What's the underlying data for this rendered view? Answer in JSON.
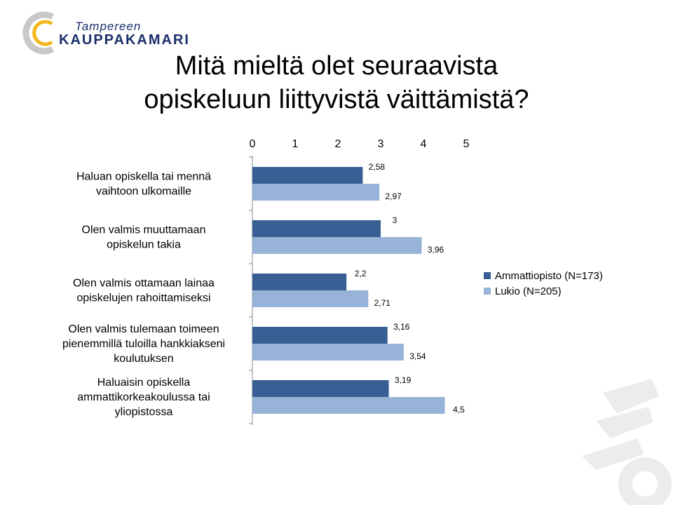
{
  "logo": {
    "line1": "Tampereen",
    "line2": "KAUPPAKAMARI"
  },
  "title": {
    "line1": "Mitä mieltä olet seuraavista",
    "line2": "opiskeluun liittyvistä väittämistä?"
  },
  "colors": {
    "series1": "#375f93",
    "series2": "#98b3d8",
    "axis": "#888888",
    "logo_accent": "#f2b81d",
    "logo_ring": "#c8c8c8"
  },
  "chart_data": {
    "type": "bar",
    "orientation": "horizontal",
    "xlim": [
      0,
      5
    ],
    "x_ticks": [
      "0",
      "1",
      "2",
      "3",
      "4",
      "5"
    ],
    "x_axis_position": "top",
    "legend_position": "right",
    "categories": [
      [
        "Haluan opiskella tai mennä",
        "vaihtoon ulkomaille"
      ],
      [
        "Olen valmis muuttamaan",
        "opiskelun takia"
      ],
      [
        "Olen valmis ottamaan lainaa",
        "opiskelujen rahoittamiseksi"
      ],
      [
        "Olen valmis tulemaan toimeen",
        "pienemmillä tuloilla hankkiakseni",
        "koulutuksen"
      ],
      [
        "Haluaisin opiskella",
        "ammattikorkeakoulussa tai",
        "yliopistossa"
      ]
    ],
    "series": [
      {
        "name": "Ammattiopisto (N=173)",
        "values": [
          2.58,
          3,
          2.2,
          3.16,
          3.19
        ],
        "labels": [
          "2,58",
          "3",
          "2,2",
          "3,16",
          "3,19"
        ]
      },
      {
        "name": "Lukio (N=205)",
        "values": [
          2.97,
          3.96,
          2.71,
          3.54,
          4.5
        ],
        "labels": [
          "2,97",
          "3,96",
          "2,71",
          "3,54",
          "4,5"
        ]
      }
    ]
  }
}
